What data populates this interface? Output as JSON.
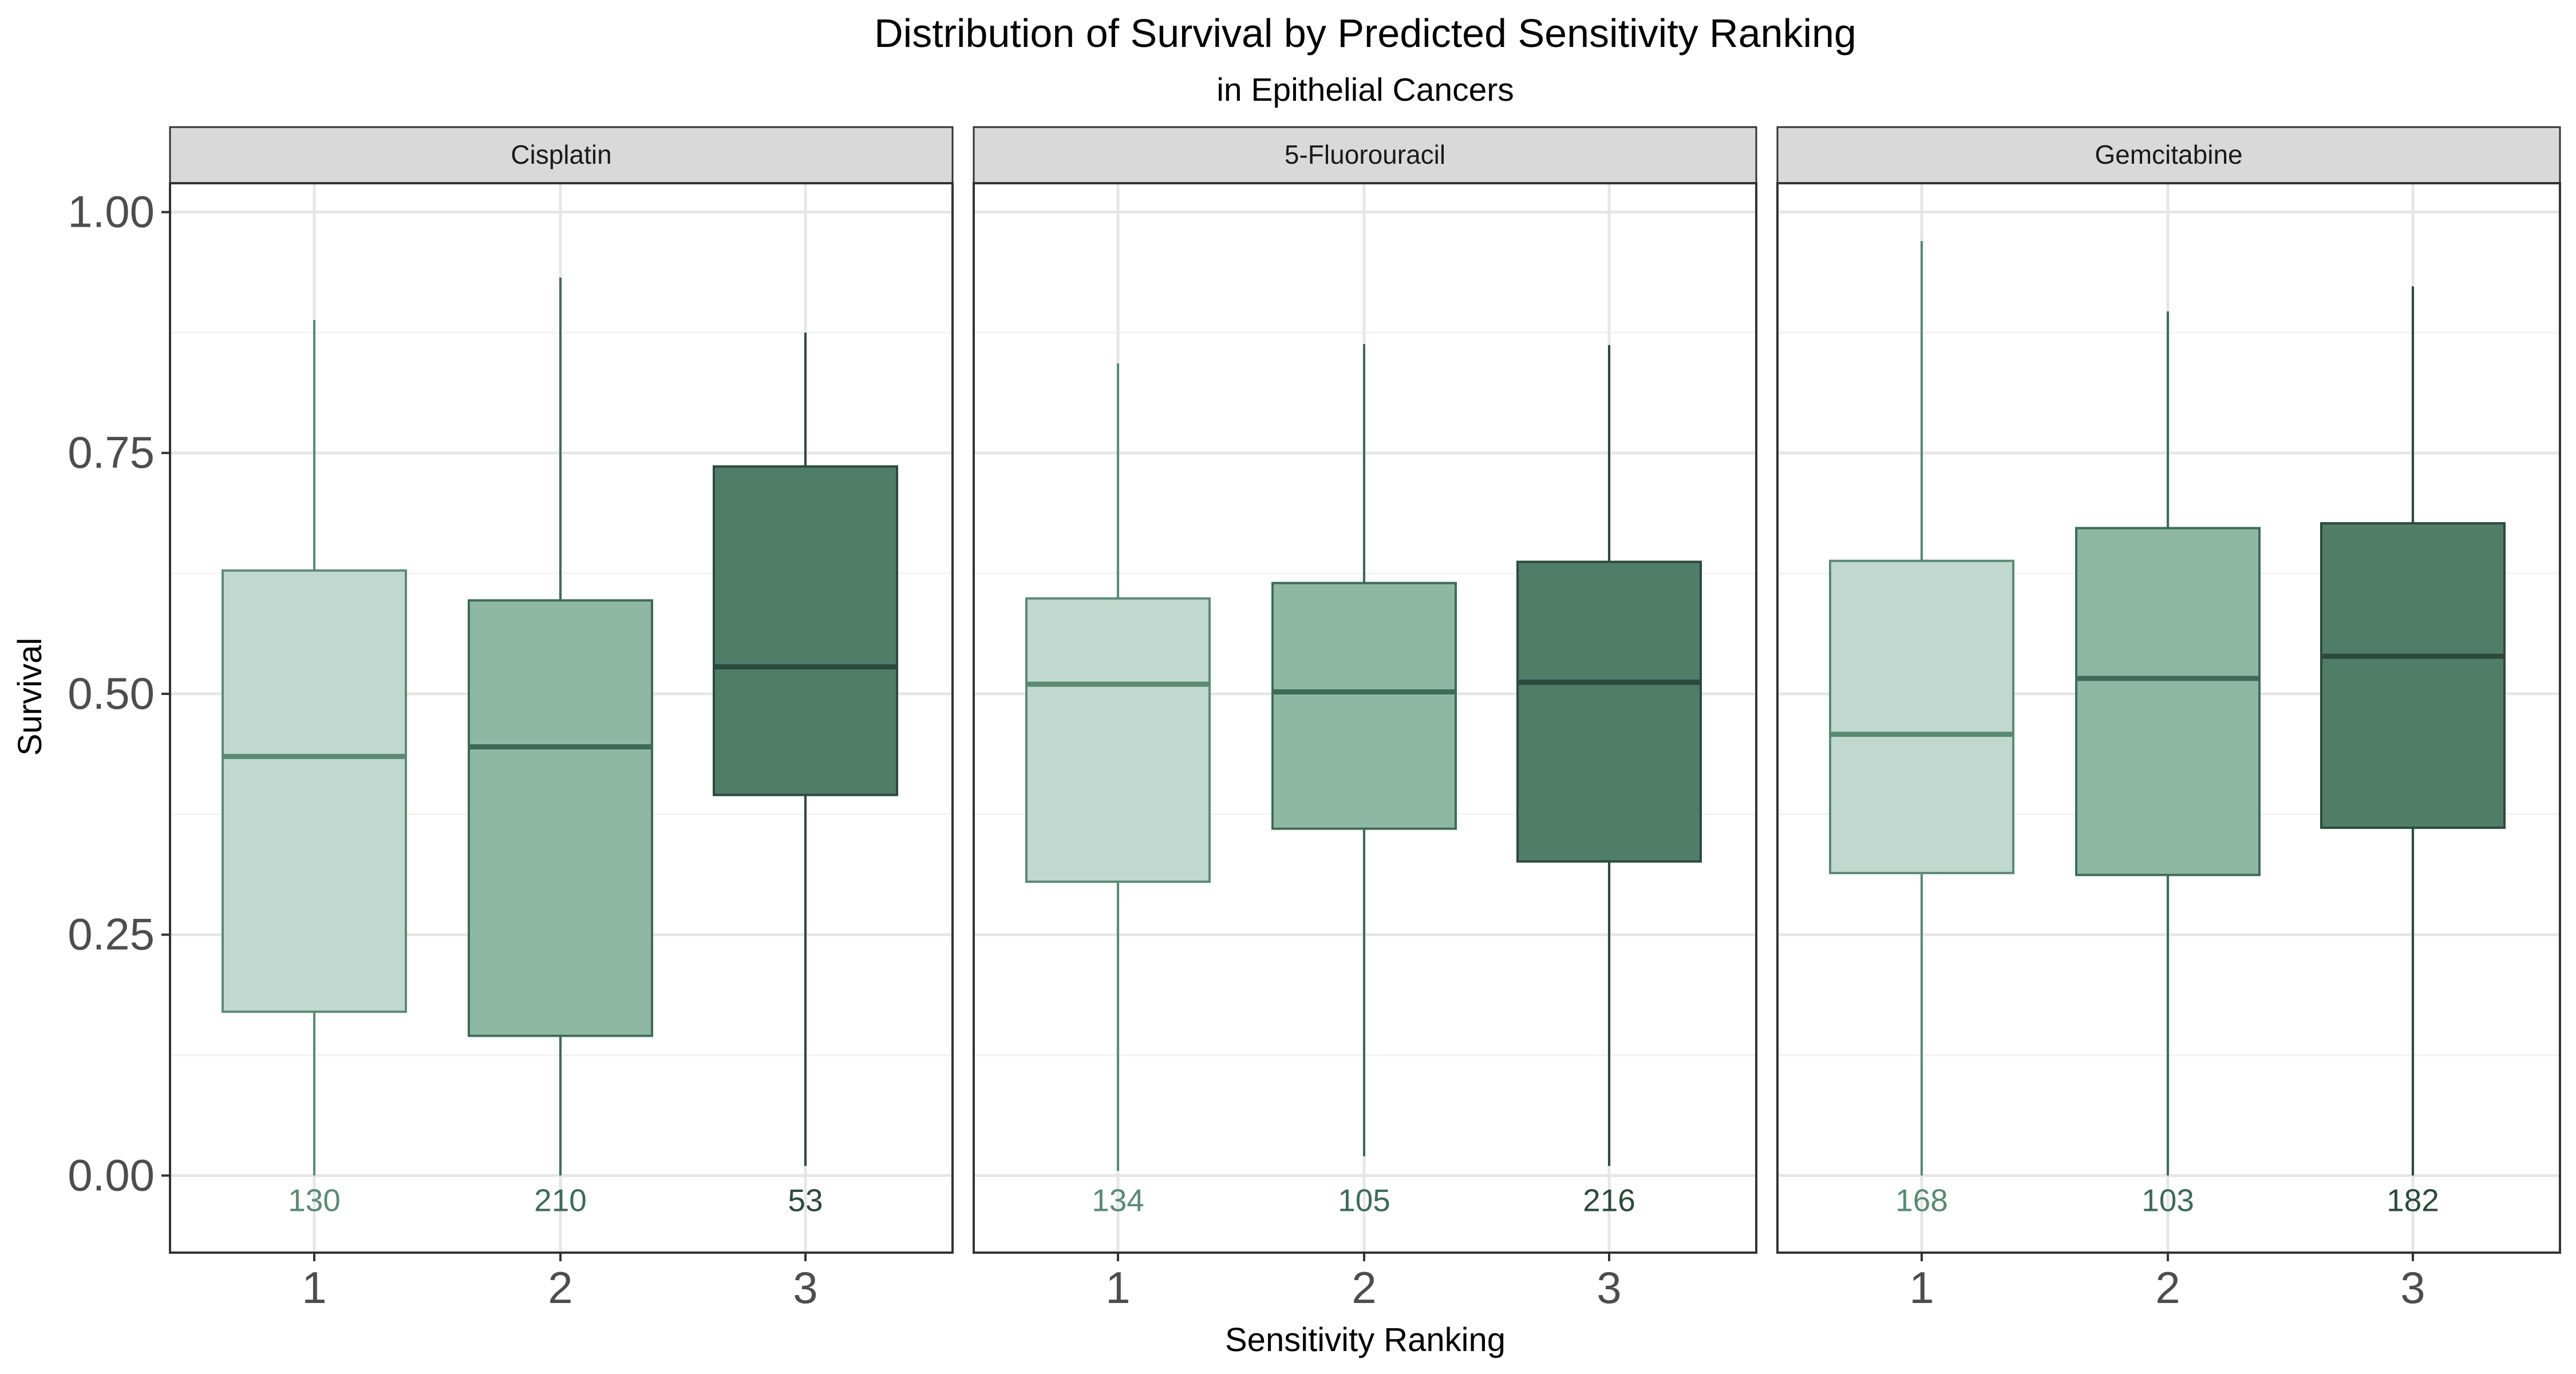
{
  "chart_data": {
    "type": "boxplot",
    "title": "Distribution of Survival by Predicted Sensitivity Ranking",
    "subtitle": "in Epithelial Cancers",
    "xlabel": "Sensitivity Ranking",
    "ylabel": "Survival",
    "ylim": [
      -0.08,
      1.03
    ],
    "yticks": [
      0,
      0.25,
      0.5,
      0.75,
      1
    ],
    "ytick_labels": [
      "0.00",
      "0.25",
      "0.50",
      "0.75",
      "1.00"
    ],
    "categories": [
      "1",
      "2",
      "3"
    ],
    "grid": true,
    "colors": {
      "fills": [
        "#c0d8cf",
        "#8fb8a4",
        "#507d68"
      ],
      "lines": [
        "#5a8a74",
        "#3d6b57",
        "#2b4a3d"
      ]
    },
    "panels": [
      {
        "name": "Cisplatin",
        "boxes": [
          {
            "category": "1",
            "whisker_low": 0.0,
            "q1": 0.17,
            "median": 0.435,
            "q3": 0.628,
            "whisker_high": 0.888,
            "n": "130"
          },
          {
            "category": "2",
            "whisker_low": 0.0,
            "q1": 0.145,
            "median": 0.445,
            "q3": 0.597,
            "whisker_high": 0.932,
            "n": "210"
          },
          {
            "category": "3",
            "whisker_low": 0.01,
            "q1": 0.395,
            "median": 0.528,
            "q3": 0.736,
            "whisker_high": 0.875,
            "n": "53"
          }
        ]
      },
      {
        "name": "5-Fluorouracil",
        "boxes": [
          {
            "category": "1",
            "whisker_low": 0.005,
            "q1": 0.305,
            "median": 0.51,
            "q3": 0.599,
            "whisker_high": 0.843,
            "n": "134"
          },
          {
            "category": "2",
            "whisker_low": 0.02,
            "q1": 0.36,
            "median": 0.502,
            "q3": 0.615,
            "whisker_high": 0.863,
            "n": "105"
          },
          {
            "category": "3",
            "whisker_low": 0.01,
            "q1": 0.326,
            "median": 0.512,
            "q3": 0.637,
            "whisker_high": 0.862,
            "n": "216"
          }
        ]
      },
      {
        "name": "Gemcitabine",
        "boxes": [
          {
            "category": "1",
            "whisker_low": 0.0,
            "q1": 0.314,
            "median": 0.458,
            "q3": 0.638,
            "whisker_high": 0.97,
            "n": "168"
          },
          {
            "category": "2",
            "whisker_low": 0.0,
            "q1": 0.312,
            "median": 0.516,
            "q3": 0.672,
            "whisker_high": 0.897,
            "n": "103"
          },
          {
            "category": "3",
            "whisker_low": 0.0,
            "q1": 0.361,
            "median": 0.539,
            "q3": 0.677,
            "whisker_high": 0.923,
            "n": "182"
          }
        ]
      }
    ]
  }
}
